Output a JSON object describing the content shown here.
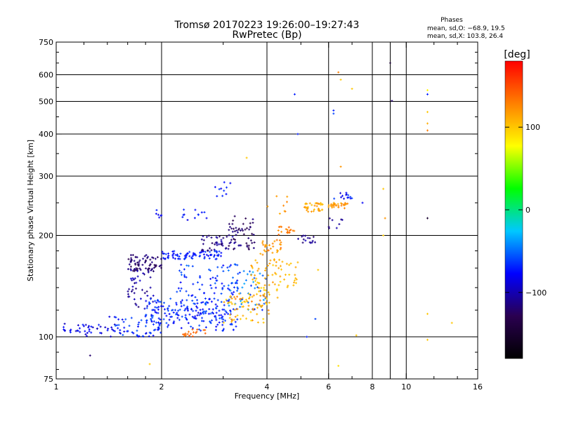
{
  "chart_data": {
    "type": "scatter",
    "title": "Tromsø 20170223 19:26:00–19:27:43",
    "subtitle": "RwPretec (Bp)",
    "xlabel": "Frequency [MHz]",
    "ylabel": "Stationary phase Virtual Height [km]",
    "x_scale": "log",
    "y_scale": "log",
    "xlim": [
      1,
      16
    ],
    "ylim": [
      75,
      750
    ],
    "x_ticks": [
      1,
      2,
      4,
      6,
      8,
      10,
      16
    ],
    "x_tick_labels": [
      "1",
      "2",
      "4",
      "6",
      "8",
      "10",
      "16"
    ],
    "y_ticks": [
      75,
      100,
      200,
      300,
      400,
      500,
      600,
      750
    ],
    "y_tick_labels": [
      "75",
      "100",
      "200",
      "300",
      "400",
      "500",
      "600",
      "750"
    ],
    "grid_x": [
      2,
      4,
      6,
      8,
      9,
      10
    ],
    "grid_y": [
      100,
      200,
      300,
      400,
      500,
      600
    ],
    "stats": {
      "title": "Phases",
      "line1": "mean, sd,O: −68.9, 19.5",
      "line2": "mean, sd,X: 103.8, 26.4"
    },
    "colorbar": {
      "label": "[deg]",
      "range": [
        -180,
        180
      ],
      "ticks": [
        100,
        0,
        -100
      ],
      "tick_labels": [
        "100",
        "0",
        "−100"
      ],
      "colors": [
        "#000000",
        "#2a0050",
        "#0000ff",
        "#00c8ff",
        "#00ff00",
        "#ffff00",
        "#ff8000",
        "#ff0000"
      ]
    },
    "clusters": [
      {
        "f": [
          1.05,
          1.5
        ],
        "h": [
          100,
          110
        ],
        "phase": [
          -100,
          -70
        ],
        "n": 40
      },
      {
        "f": [
          1.4,
          2.0
        ],
        "h": [
          100,
          115
        ],
        "phase": [
          -90,
          -55
        ],
        "n": 60
      },
      {
        "f": [
          1.6,
          2.0
        ],
        "h": [
          155,
          175
        ],
        "phase": [
          -130,
          -110
        ],
        "n": 70
      },
      {
        "f": [
          1.6,
          1.9
        ],
        "h": [
          120,
          160
        ],
        "phase": [
          -120,
          -90
        ],
        "n": 45
      },
      {
        "f": [
          2.0,
          3.0
        ],
        "h": [
          170,
          180
        ],
        "phase": [
          -85,
          -60
        ],
        "n": 80
      },
      {
        "f": [
          1.8,
          3.2
        ],
        "h": [
          115,
          130
        ],
        "phase": [
          -85,
          -55
        ],
        "n": 100
      },
      {
        "f": [
          1.9,
          3.3
        ],
        "h": [
          104,
          122
        ],
        "phase": [
          -85,
          -55
        ],
        "n": 110
      },
      {
        "f": [
          2.2,
          3.3
        ],
        "h": [
          130,
          165
        ],
        "phase": [
          -80,
          -50
        ],
        "n": 70
      },
      {
        "f": [
          2.6,
          3.4
        ],
        "h": [
          180,
          200
        ],
        "phase": [
          -125,
          -100
        ],
        "n": 45
      },
      {
        "f": [
          3.1,
          3.7
        ],
        "h": [
          180,
          230
        ],
        "phase": [
          -135,
          -110
        ],
        "n": 50
      },
      {
        "f": [
          3.0,
          4.0
        ],
        "h": [
          120,
          160
        ],
        "phase": [
          -70,
          -30
        ],
        "n": 50
      },
      {
        "f": [
          3.0,
          4.1
        ],
        "h": [
          110,
          135
        ],
        "phase": [
          90,
          130
        ],
        "n": 70
      },
      {
        "f": [
          3.6,
          4.4
        ],
        "h": [
          130,
          170
        ],
        "phase": [
          95,
          120
        ],
        "n": 55
      },
      {
        "f": [
          3.8,
          4.4
        ],
        "h": [
          175,
          195
        ],
        "phase": [
          110,
          140
        ],
        "n": 30
      },
      {
        "f": [
          4.1,
          4.9
        ],
        "h": [
          140,
          170
        ],
        "phase": [
          95,
          115
        ],
        "n": 20
      },
      {
        "f": [
          4.3,
          4.8
        ],
        "h": [
          200,
          215
        ],
        "phase": [
          120,
          140
        ],
        "n": 18
      },
      {
        "f": [
          4.9,
          5.5
        ],
        "h": [
          190,
          200
        ],
        "phase": [
          -120,
          -95
        ],
        "n": 15
      },
      {
        "f": [
          5.1,
          5.8
        ],
        "h": [
          235,
          250
        ],
        "phase": [
          100,
          125
        ],
        "n": 35
      },
      {
        "f": [
          6.0,
          6.8
        ],
        "h": [
          240,
          250
        ],
        "phase": [
          110,
          130
        ],
        "n": 30
      },
      {
        "f": [
          6.2,
          7.0
        ],
        "h": [
          255,
          268
        ],
        "phase": [
          -90,
          -60
        ],
        "n": 14
      },
      {
        "f": [
          6.0,
          6.8
        ],
        "h": [
          210,
          225
        ],
        "phase": [
          -120,
          -100
        ],
        "n": 8
      },
      {
        "f": [
          4.0,
          4.6
        ],
        "h": [
          232,
          262
        ],
        "phase": [
          110,
          130
        ],
        "n": 8
      },
      {
        "f": [
          1.9,
          2.0
        ],
        "h": [
          225,
          240
        ],
        "phase": [
          -85,
          -70
        ],
        "n": 6
      },
      {
        "f": [
          2.2,
          2.7
        ],
        "h": [
          220,
          240
        ],
        "phase": [
          -85,
          -60
        ],
        "n": 12
      },
      {
        "f": [
          2.8,
          3.2
        ],
        "h": [
          260,
          290
        ],
        "phase": [
          -85,
          -60
        ],
        "n": 10
      },
      {
        "f": [
          2.3,
          2.7
        ],
        "h": [
          100,
          106
        ],
        "phase": [
          130,
          145
        ],
        "n": 18
      }
    ],
    "points": [
      {
        "f": 9.0,
        "h": 650,
        "phase": -150
      },
      {
        "f": 9.1,
        "h": 502,
        "phase": -120
      },
      {
        "f": 6.4,
        "h": 610,
        "phase": 130
      },
      {
        "f": 6.5,
        "h": 580,
        "phase": 100
      },
      {
        "f": 6.2,
        "h": 460,
        "phase": -60
      },
      {
        "f": 6.2,
        "h": 470,
        "phase": -70
      },
      {
        "f": 7.0,
        "h": 545,
        "phase": 100
      },
      {
        "f": 4.8,
        "h": 525,
        "phase": -70
      },
      {
        "f": 4.9,
        "h": 400,
        "phase": -70
      },
      {
        "f": 11.5,
        "h": 540,
        "phase": 80
      },
      {
        "f": 11.5,
        "h": 525,
        "phase": -70
      },
      {
        "f": 11.5,
        "h": 465,
        "phase": 100
      },
      {
        "f": 11.5,
        "h": 430,
        "phase": 110
      },
      {
        "f": 11.5,
        "h": 410,
        "phase": 130
      },
      {
        "f": 11.5,
        "h": 225,
        "phase": -150
      },
      {
        "f": 8.6,
        "h": 275,
        "phase": 100
      },
      {
        "f": 8.7,
        "h": 225,
        "phase": 120
      },
      {
        "f": 8.6,
        "h": 200,
        "phase": 100
      },
      {
        "f": 7.5,
        "h": 250,
        "phase": -80
      },
      {
        "f": 6.5,
        "h": 320,
        "phase": 120
      },
      {
        "f": 3.5,
        "h": 340,
        "phase": 100
      },
      {
        "f": 13.5,
        "h": 110,
        "phase": 100
      },
      {
        "f": 11.5,
        "h": 117,
        "phase": 100
      },
      {
        "f": 11.5,
        "h": 98,
        "phase": 100
      },
      {
        "f": 6.4,
        "h": 82,
        "phase": 90
      },
      {
        "f": 5.2,
        "h": 100,
        "phase": -70
      },
      {
        "f": 5.5,
        "h": 113,
        "phase": -60
      },
      {
        "f": 7.2,
        "h": 101,
        "phase": 100
      },
      {
        "f": 1.85,
        "h": 83,
        "phase": 100
      },
      {
        "f": 1.25,
        "h": 88,
        "phase": -120
      },
      {
        "f": 5.6,
        "h": 158,
        "phase": 100
      }
    ]
  }
}
